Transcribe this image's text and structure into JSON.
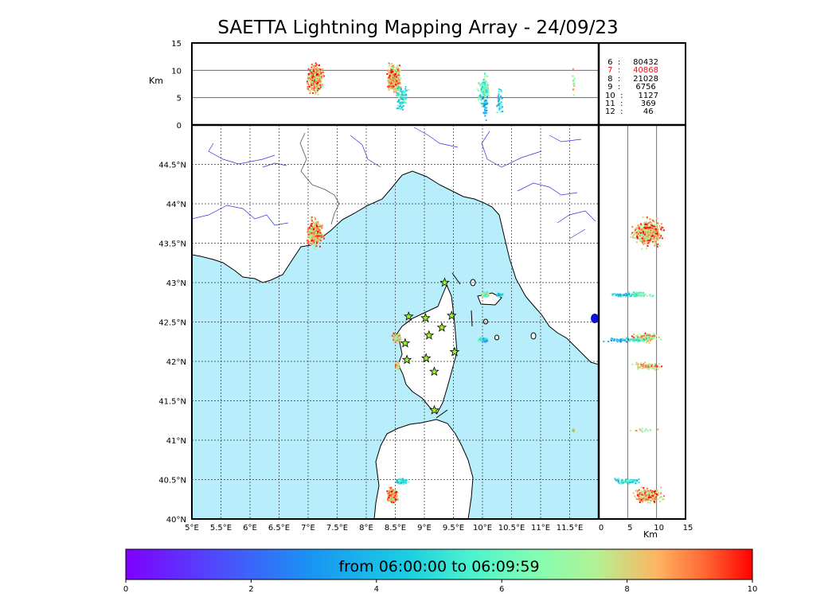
{
  "chart_data": {
    "type": "scatter",
    "title": "SAETTA Lightning Mapping Array - 24/09/23",
    "map": {
      "xlim": [
        5,
        12
      ],
      "ylim": [
        40,
        45
      ],
      "x_ticks": [
        "5°E",
        "5.5°E",
        "6°E",
        "6.5°E",
        "7°E",
        "7.5°E",
        "8°E",
        "8.5°E",
        "9°E",
        "9.5°E",
        "10°E",
        "10.5°E",
        "11°E",
        "11.5°E"
      ],
      "y_ticks": [
        "40°N",
        "40.5°N",
        "41°N",
        "41.5°N",
        "42°N",
        "42.5°N",
        "43°N",
        "43.5°N",
        "44°N",
        "44.5°N"
      ],
      "grid": true,
      "stations": [
        {
          "lon": 9.35,
          "lat": 43.0
        },
        {
          "lon": 8.73,
          "lat": 42.57
        },
        {
          "lon": 9.02,
          "lat": 42.55
        },
        {
          "lon": 9.47,
          "lat": 42.58
        },
        {
          "lon": 9.3,
          "lat": 42.43
        },
        {
          "lon": 9.08,
          "lat": 42.33
        },
        {
          "lon": 8.67,
          "lat": 42.23
        },
        {
          "lon": 9.52,
          "lat": 42.12
        },
        {
          "lon": 8.7,
          "lat": 42.02
        },
        {
          "lon": 9.03,
          "lat": 42.04
        },
        {
          "lon": 9.17,
          "lat": 41.87
        },
        {
          "lon": 9.17,
          "lat": 41.38
        }
      ],
      "clusters": [
        {
          "lon": 7.12,
          "lat": 43.63,
          "dlon": 0.18,
          "dlat": 0.22,
          "alt": 8.5,
          "n": 420
        },
        {
          "lon": 8.53,
          "lat": 42.3,
          "dlon": 0.1,
          "dlat": 0.08,
          "alt": 8.2,
          "n": 120
        },
        {
          "lon": 8.54,
          "lat": 41.94,
          "dlon": 0.06,
          "dlat": 0.07,
          "alt": 8.4,
          "n": 80
        },
        {
          "lon": 10.05,
          "lat": 42.85,
          "dlon": 0.1,
          "dlat": 0.04,
          "alt": 6.5,
          "n": 70
        },
        {
          "lon": 10.3,
          "lat": 42.84,
          "dlon": 0.08,
          "dlat": 0.03,
          "alt": 4.5,
          "n": 40
        },
        {
          "lon": 10.0,
          "lat": 42.27,
          "dlon": 0.12,
          "dlat": 0.04,
          "alt": 5.8,
          "n": 60
        },
        {
          "lon": 10.05,
          "lat": 42.27,
          "dlon": 0.08,
          "dlat": 0.03,
          "alt": 3.5,
          "n": 40
        },
        {
          "lon": 8.45,
          "lat": 40.3,
          "dlon": 0.12,
          "dlat": 0.13,
          "alt": 8.6,
          "n": 220
        },
        {
          "lon": 8.6,
          "lat": 40.48,
          "dlon": 0.15,
          "dlat": 0.05,
          "alt": 5.0,
          "n": 90
        },
        {
          "lon": 11.57,
          "lat": 41.13,
          "dlon": 0.04,
          "dlat": 0.03,
          "alt": 7.5,
          "n": 15
        }
      ]
    },
    "alt_lon": {
      "ylabel": "Km",
      "ylim": [
        0,
        15
      ],
      "y_ticks": [
        "0",
        "5",
        "10",
        "15"
      ],
      "gridlines": [
        5,
        10
      ]
    },
    "alt_lat": {
      "xlabel": "Km",
      "xlim": [
        0,
        15
      ],
      "x_ticks": [
        "0",
        "5",
        "10",
        "15"
      ],
      "gridlines": [
        5,
        10
      ]
    },
    "station_counts": [
      {
        "stations": "6",
        "count": "80432",
        "highlight": false
      },
      {
        "stations": "7",
        "count": "40868",
        "highlight": true
      },
      {
        "stations": "8",
        "count": "21028",
        "highlight": false
      },
      {
        "stations": "9",
        "count": "6756",
        "highlight": false
      },
      {
        "stations": "10",
        "count": "1127",
        "highlight": false
      },
      {
        "stations": "11",
        "count": "369",
        "highlight": false
      },
      {
        "stations": "12",
        "count": "46",
        "highlight": false
      }
    ],
    "colorbar": {
      "label": "from 06:00:00 to 06:09:59",
      "range": [
        0,
        10
      ],
      "ticks": [
        "0",
        "2",
        "4",
        "6",
        "8",
        "10"
      ]
    }
  },
  "colors": {
    "sea": "#b8eefb",
    "land": "#ffffff",
    "coast": "#000000",
    "rivers": "#3232dd",
    "border": "#555555",
    "highlight_count": "#e8141a"
  }
}
